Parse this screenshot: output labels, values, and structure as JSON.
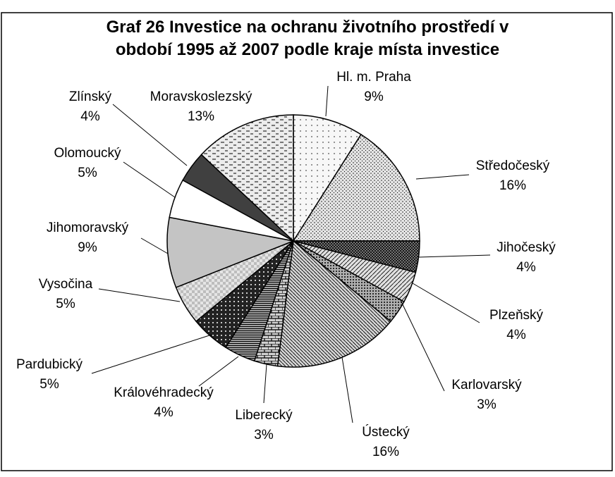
{
  "chart_data": {
    "type": "pie",
    "title": "Graf 26 Investice na ochranu životního prostředí v období 1995 až 2007 podle kraje místa investice",
    "categories": [
      "Hl. m. Praha",
      "Středočeský",
      "Jihočeský",
      "Plzeňský",
      "Karlovarský",
      "Ústecký",
      "Liberecký",
      "Královéhradecký",
      "Pardubický",
      "Vysočina",
      "Jihomoravský",
      "Olomoucký",
      "Zlínský",
      "Moravskoslezský"
    ],
    "values": [
      9,
      16,
      4,
      4,
      3,
      16,
      3,
      4,
      5,
      5,
      9,
      5,
      4,
      13
    ],
    "value_labels": [
      "9%",
      "16%",
      "4%",
      "4%",
      "3%",
      "16%",
      "3%",
      "4%",
      "5%",
      "5%",
      "9%",
      "5%",
      "4%",
      "13%"
    ],
    "colors": [
      "#f7f7f7",
      "#e4e4e4",
      "#8c8c8c",
      "#e0e0e0",
      "#b0b0b0",
      "#d4d4d4",
      "#d0d0d0",
      "#a0a0a0",
      "#222222",
      "#bdbdbd",
      "#c4c4c4",
      "#ffffff",
      "#404040",
      "#ececec"
    ]
  }
}
